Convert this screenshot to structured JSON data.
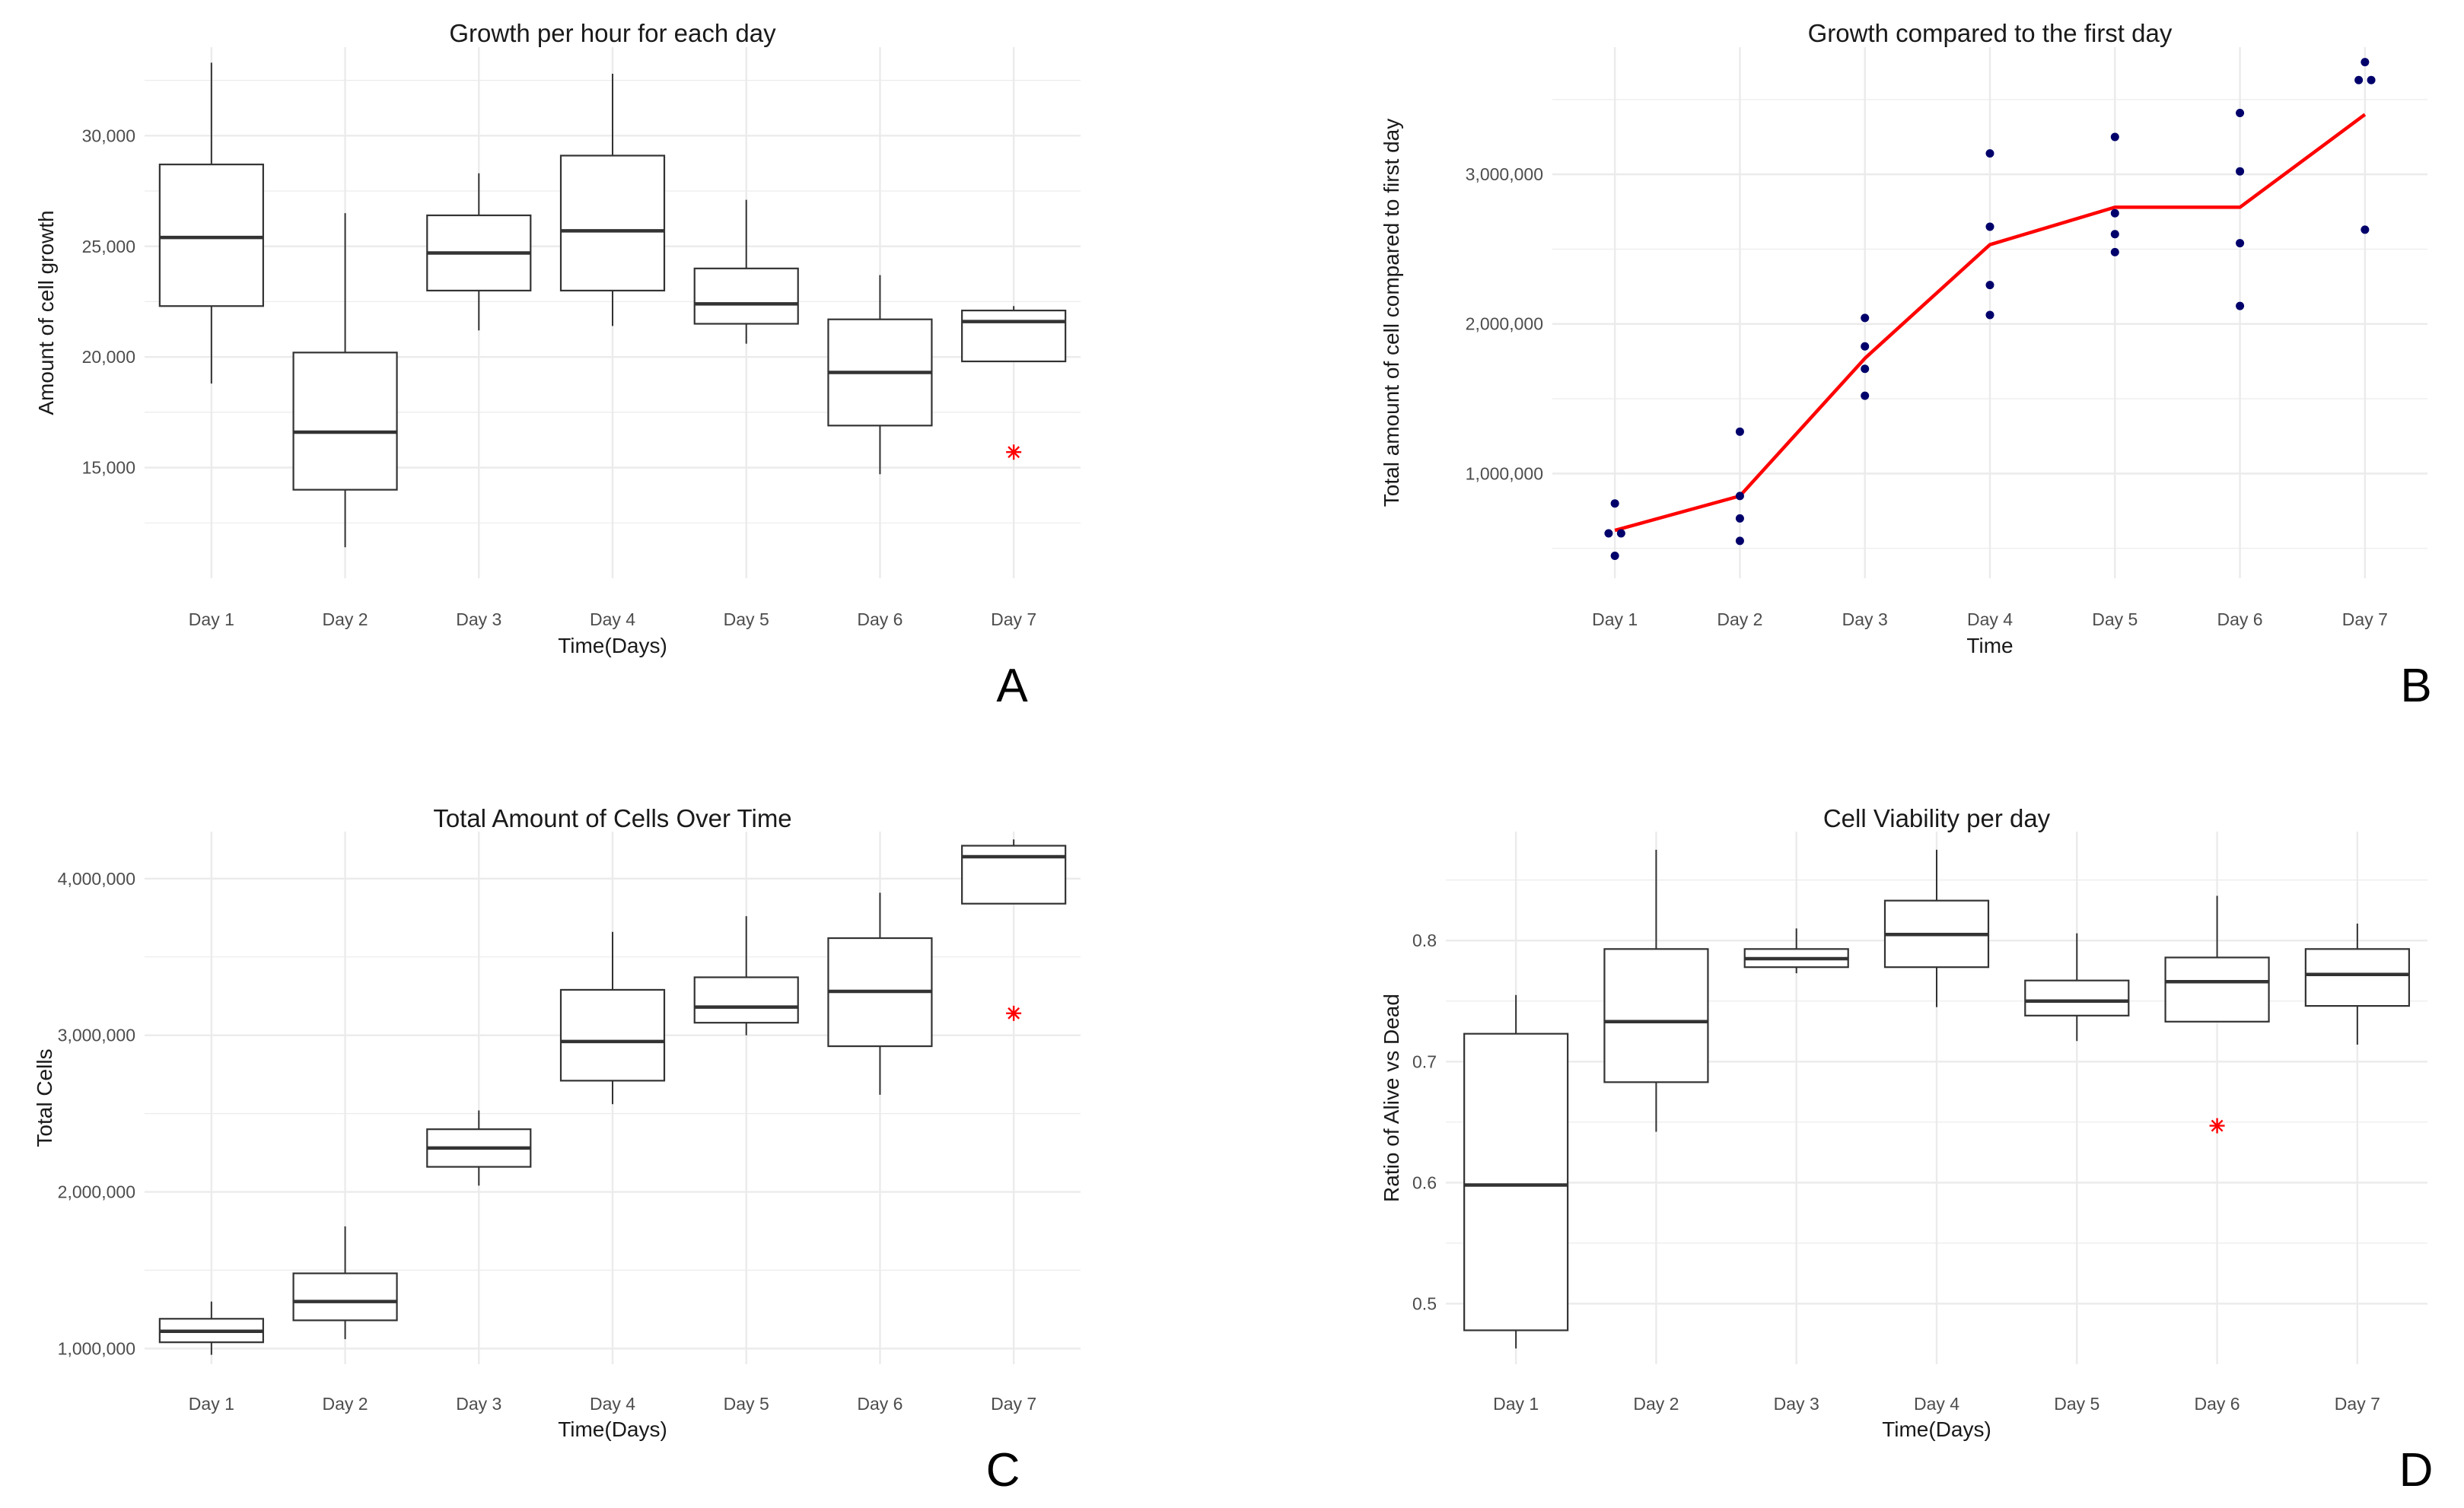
{
  "colors": {
    "grid": "#ebebeb",
    "box_stroke": "#333333",
    "outlier": "#ff0000",
    "point": "#00006b",
    "line": "#ff0000"
  },
  "chart_data": [
    {
      "panel": "A",
      "type": "boxplot",
      "title": "Growth per hour for each day",
      "xlabel": "Time(Days)",
      "ylabel": "Amount of cell growth",
      "ylim": [
        10000,
        34000
      ],
      "yticks": [
        15000,
        20000,
        25000,
        30000
      ],
      "ytick_labels": [
        "15,000",
        "20,000",
        "25,000",
        "30,000"
      ],
      "grid": true,
      "categories": [
        "Day 1",
        "Day 2",
        "Day 3",
        "Day 4",
        "Day 5",
        "Day 6",
        "Day 7"
      ],
      "boxes": [
        {
          "min": 18800,
          "q1": 22300,
          "median": 25400,
          "q3": 28700,
          "max": 33300,
          "outliers": []
        },
        {
          "min": 11400,
          "q1": 14000,
          "median": 16600,
          "q3": 20200,
          "max": 26500,
          "outliers": []
        },
        {
          "min": 21200,
          "q1": 23000,
          "median": 24700,
          "q3": 26400,
          "max": 28300,
          "outliers": []
        },
        {
          "min": 21400,
          "q1": 23000,
          "median": 25700,
          "q3": 29100,
          "max": 32800,
          "outliers": []
        },
        {
          "min": 20600,
          "q1": 21500,
          "median": 22400,
          "q3": 24000,
          "max": 27100,
          "outliers": []
        },
        {
          "min": 14700,
          "q1": 16900,
          "median": 19300,
          "q3": 21700,
          "max": 23700,
          "outliers": []
        },
        {
          "min": 19800,
          "q1": 19800,
          "median": 21600,
          "q3": 22100,
          "max": 22300,
          "outliers": [
            15700
          ]
        }
      ]
    },
    {
      "panel": "B",
      "type": "scatter",
      "title": "Growth compared to the first day",
      "xlabel": "Time",
      "ylabel": "Total amount of cell compared to first day",
      "ylim": [
        300000,
        3850000
      ],
      "yticks": [
        1000000,
        2000000,
        3000000
      ],
      "ytick_labels": [
        "1,000,000",
        "2,000,000",
        "3,000,000"
      ],
      "grid": true,
      "categories": [
        "Day 1",
        "Day 2",
        "Day 3",
        "Day 4",
        "Day 5",
        "Day 6",
        "Day 7"
      ],
      "points": [
        {
          "day": 1,
          "y": 450000,
          "dx": 0
        },
        {
          "day": 1,
          "y": 600000,
          "dx": -0.05
        },
        {
          "day": 1,
          "y": 600000,
          "dx": 0.05
        },
        {
          "day": 1,
          "y": 800000,
          "dx": 0
        },
        {
          "day": 2,
          "y": 550000,
          "dx": 0
        },
        {
          "day": 2,
          "y": 700000,
          "dx": 0
        },
        {
          "day": 2,
          "y": 850000,
          "dx": 0
        },
        {
          "day": 2,
          "y": 1280000,
          "dx": 0
        },
        {
          "day": 3,
          "y": 1520000,
          "dx": 0
        },
        {
          "day": 3,
          "y": 1700000,
          "dx": 0
        },
        {
          "day": 3,
          "y": 1850000,
          "dx": 0
        },
        {
          "day": 3,
          "y": 2040000,
          "dx": 0
        },
        {
          "day": 4,
          "y": 2060000,
          "dx": 0
        },
        {
          "day": 4,
          "y": 2260000,
          "dx": 0
        },
        {
          "day": 4,
          "y": 2650000,
          "dx": 0
        },
        {
          "day": 4,
          "y": 3140000,
          "dx": 0
        },
        {
          "day": 5,
          "y": 2480000,
          "dx": 0
        },
        {
          "day": 5,
          "y": 2600000,
          "dx": 0
        },
        {
          "day": 5,
          "y": 2740000,
          "dx": 0
        },
        {
          "day": 5,
          "y": 3250000,
          "dx": 0
        },
        {
          "day": 6,
          "y": 2120000,
          "dx": 0
        },
        {
          "day": 6,
          "y": 2540000,
          "dx": 0
        },
        {
          "day": 6,
          "y": 3020000,
          "dx": 0
        },
        {
          "day": 6,
          "y": 3410000,
          "dx": 0
        },
        {
          "day": 7,
          "y": 2630000,
          "dx": 0
        },
        {
          "day": 7,
          "y": 3630000,
          "dx": -0.05
        },
        {
          "day": 7,
          "y": 3630000,
          "dx": 0.05
        },
        {
          "day": 7,
          "y": 3750000,
          "dx": 0
        }
      ],
      "mean_line": [
        620000,
        850000,
        1770000,
        2530000,
        2780000,
        2780000,
        3400000
      ]
    },
    {
      "panel": "C",
      "type": "boxplot",
      "title": "Total Amount of Cells Over Time",
      "xlabel": "Time(Days)",
      "ylabel": "Total Cells",
      "ylim": [
        900000,
        4300000
      ],
      "yticks": [
        1000000,
        2000000,
        3000000,
        4000000
      ],
      "ytick_labels": [
        "1,000,000",
        "2,000,000",
        "3,000,000",
        "4,000,000"
      ],
      "grid": true,
      "categories": [
        "Day 1",
        "Day 2",
        "Day 3",
        "Day 4",
        "Day 5",
        "Day 6",
        "Day 7"
      ],
      "boxes": [
        {
          "min": 960000,
          "q1": 1040000,
          "median": 1110000,
          "q3": 1190000,
          "max": 1300000,
          "outliers": []
        },
        {
          "min": 1060000,
          "q1": 1180000,
          "median": 1300000,
          "q3": 1480000,
          "max": 1780000,
          "outliers": []
        },
        {
          "min": 2040000,
          "q1": 2160000,
          "median": 2280000,
          "q3": 2400000,
          "max": 2520000,
          "outliers": []
        },
        {
          "min": 2560000,
          "q1": 2710000,
          "median": 2960000,
          "q3": 3290000,
          "max": 3660000,
          "outliers": []
        },
        {
          "min": 3000000,
          "q1": 3080000,
          "median": 3180000,
          "q3": 3370000,
          "max": 3760000,
          "outliers": []
        },
        {
          "min": 2620000,
          "q1": 2930000,
          "median": 3280000,
          "q3": 3620000,
          "max": 3910000,
          "outliers": []
        },
        {
          "min": 3840000,
          "q1": 3840000,
          "median": 4140000,
          "q3": 4210000,
          "max": 4250000,
          "outliers": [
            3140000
          ]
        }
      ]
    },
    {
      "panel": "D",
      "type": "boxplot",
      "title": "Cell Viability per day",
      "xlabel": "Time(Days)",
      "ylabel": "Ratio of Alive vs Dead",
      "ylim": [
        0.45,
        0.89
      ],
      "yticks": [
        0.5,
        0.6,
        0.7,
        0.8
      ],
      "ytick_labels": [
        "0.5",
        "0.6",
        "0.7",
        "0.8"
      ],
      "grid": true,
      "categories": [
        "Day 1",
        "Day 2",
        "Day 3",
        "Day 4",
        "Day 5",
        "Day 6",
        "Day 7"
      ],
      "boxes": [
        {
          "min": 0.463,
          "q1": 0.478,
          "median": 0.598,
          "q3": 0.723,
          "max": 0.755,
          "outliers": []
        },
        {
          "min": 0.642,
          "q1": 0.683,
          "median": 0.733,
          "q3": 0.793,
          "max": 0.875,
          "outliers": []
        },
        {
          "min": 0.773,
          "q1": 0.778,
          "median": 0.785,
          "q3": 0.793,
          "max": 0.81,
          "outliers": []
        },
        {
          "min": 0.745,
          "q1": 0.778,
          "median": 0.805,
          "q3": 0.833,
          "max": 0.875,
          "outliers": []
        },
        {
          "min": 0.717,
          "q1": 0.738,
          "median": 0.75,
          "q3": 0.767,
          "max": 0.806,
          "outliers": []
        },
        {
          "min": 0.733,
          "q1": 0.733,
          "median": 0.766,
          "q3": 0.786,
          "max": 0.837,
          "outliers": [
            0.647
          ]
        },
        {
          "min": 0.714,
          "q1": 0.746,
          "median": 0.772,
          "q3": 0.793,
          "max": 0.814,
          "outliers": []
        }
      ]
    }
  ]
}
